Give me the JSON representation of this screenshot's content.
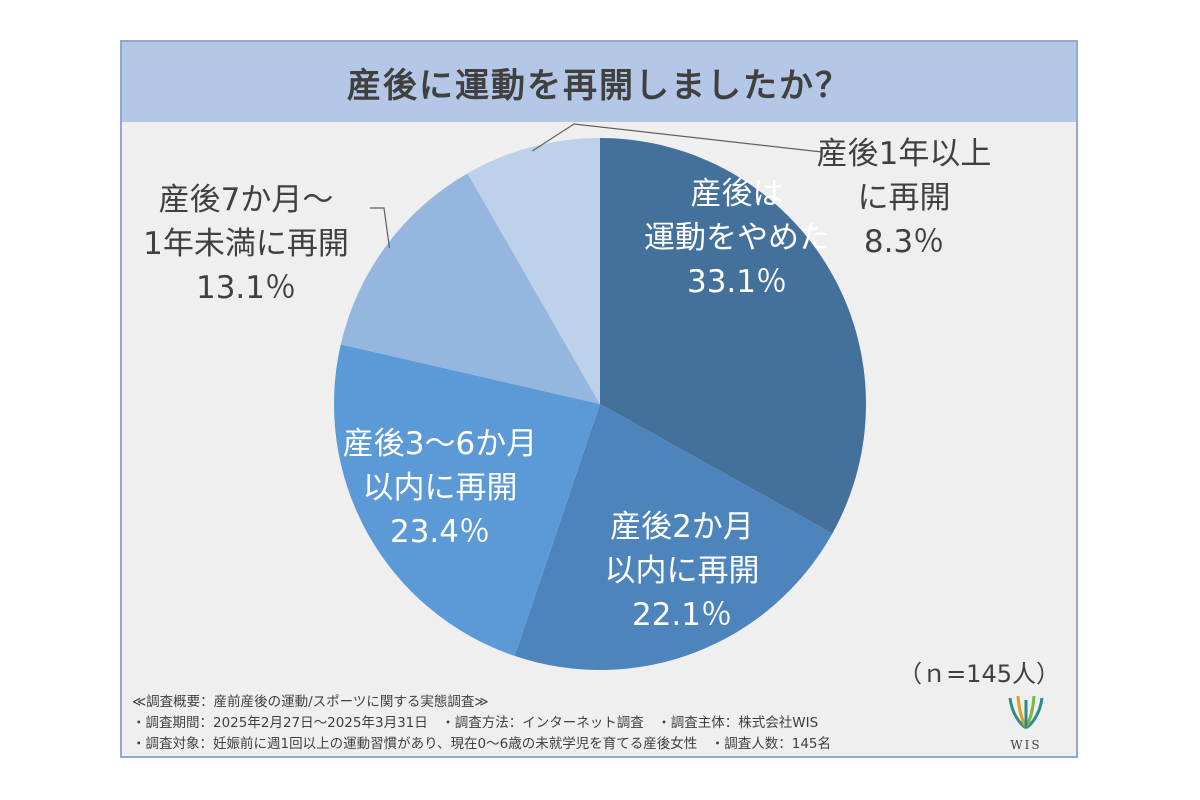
{
  "title": "産後に運動を再開しましたか？",
  "chart_data": {
    "type": "pie",
    "categories": [
      "産後は運動をやめた",
      "産後2か月以内に再開",
      "産後3〜6か月以内に再開",
      "産後7か月〜1年未満に再開",
      "産後1年以上に再開"
    ],
    "values": [
      33.1,
      22.1,
      23.4,
      13.1,
      8.3
    ],
    "colors": [
      "#44719c",
      "#4c84bb",
      "#5b9ad6",
      "#95b6df",
      "#bdd1ea"
    ],
    "labels": [
      {
        "lines": [
          "産後は",
          "運動をやめた",
          "33.1％"
        ]
      },
      {
        "lines": [
          "産後2か月",
          "以内に再開",
          "22.1％"
        ]
      },
      {
        "lines": [
          "産後3〜6か月",
          "以内に再開",
          "23.4％"
        ]
      },
      {
        "lines": [
          "産後7か月〜",
          "1年未満に再開",
          "13.1％"
        ]
      },
      {
        "lines": [
          "産後1年以上",
          "に再開",
          "8.3％"
        ]
      }
    ]
  },
  "sample_size": "（ｎ=145人）",
  "footer": {
    "line1": "≪調査概要：産前産後の運動/スポーツに関する実態調査≫",
    "line2": "・調査期間：2025年2月27日〜2025年3月31日　・調査方法：インターネット調査　・調査主体：株式会社WIS",
    "line3": "・調査対象：妊娠前に週1回以上の運動習慣があり、現在0〜6歳の未就学児を育てる産後女性　・調査人数：145名"
  },
  "logo": {
    "text": "WIS",
    "icon": "wis-logo-icon",
    "colors": [
      "#2e8b8b",
      "#e0a020",
      "#7ab648"
    ]
  }
}
